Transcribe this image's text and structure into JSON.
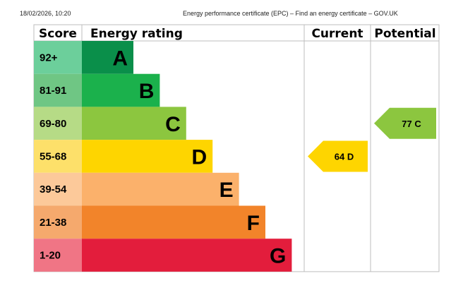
{
  "header": {
    "datetime": "18/02/2026, 10:20",
    "title": "Energy performance certificate (EPC) – Find an energy certificate – GOV.UK"
  },
  "table": {
    "col_score": "Score",
    "col_rating": "Energy rating",
    "col_current": "Current",
    "col_potential": "Potential"
  },
  "chart_data": {
    "type": "bar",
    "categories": [
      "A",
      "B",
      "C",
      "D",
      "E",
      "F",
      "G"
    ],
    "bands": [
      {
        "letter": "A",
        "range": "92+",
        "color": "#0a8f4a",
        "score_color": "#6ccf9b"
      },
      {
        "letter": "B",
        "range": "81-91",
        "color": "#1bb14c",
        "score_color": "#6fc684"
      },
      {
        "letter": "C",
        "range": "69-80",
        "color": "#8cc63f",
        "score_color": "#b6db86"
      },
      {
        "letter": "D",
        "range": "55-68",
        "color": "#fed500",
        "score_color": "#fde06a"
      },
      {
        "letter": "E",
        "range": "39-54",
        "color": "#fbb16b",
        "score_color": "#fcc99a"
      },
      {
        "letter": "F",
        "range": "21-38",
        "color": "#f2842a",
        "score_color": "#f5a96d"
      },
      {
        "letter": "G",
        "range": "1-20",
        "color": "#e31d3c",
        "score_color": "#f07585"
      }
    ],
    "current": {
      "value": 64,
      "band": "D",
      "label": "64  D",
      "color": "#fed500"
    },
    "potential": {
      "value": 77,
      "band": "C",
      "label": "77  C",
      "color": "#8cc63f"
    }
  }
}
